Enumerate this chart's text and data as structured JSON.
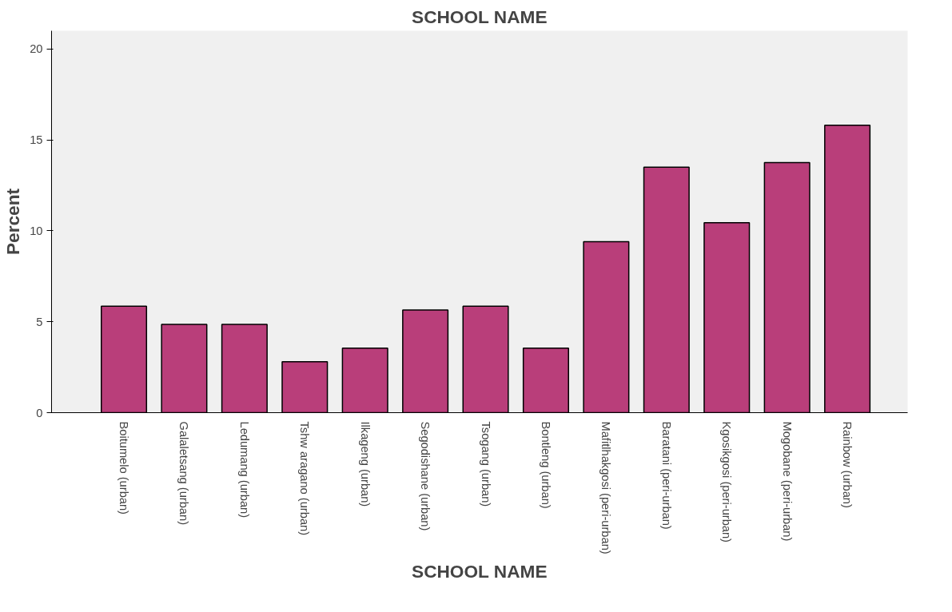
{
  "chart_data": {
    "type": "bar",
    "title": "SCHOOL NAME",
    "xlabel": "SCHOOL NAME",
    "ylabel": "Percent",
    "categories": [
      "Boitumelo (urban)",
      "Galaletsang (urban)",
      "Ledumang (urban)",
      "Tshw aragano (urban)",
      "Ilkageng (urban)",
      "Segodishane (urban)",
      "Tsogang (urban)",
      "Bontleng (urban)",
      "Mafitlhakgosi (peri-urban)",
      "Baratani (peri-urban)",
      "Kgosikgosi (peri-urban)",
      "Mogobane (peri-urban)",
      "Rainbow (urban)"
    ],
    "values": [
      5.85,
      4.85,
      4.85,
      2.8,
      3.55,
      5.65,
      5.85,
      3.55,
      9.4,
      13.5,
      10.45,
      13.75,
      15.8
    ],
    "color": "#b93e7a",
    "ylim": [
      0,
      21
    ],
    "yticks": [
      0,
      5,
      10,
      15,
      20
    ],
    "grid": false
  }
}
